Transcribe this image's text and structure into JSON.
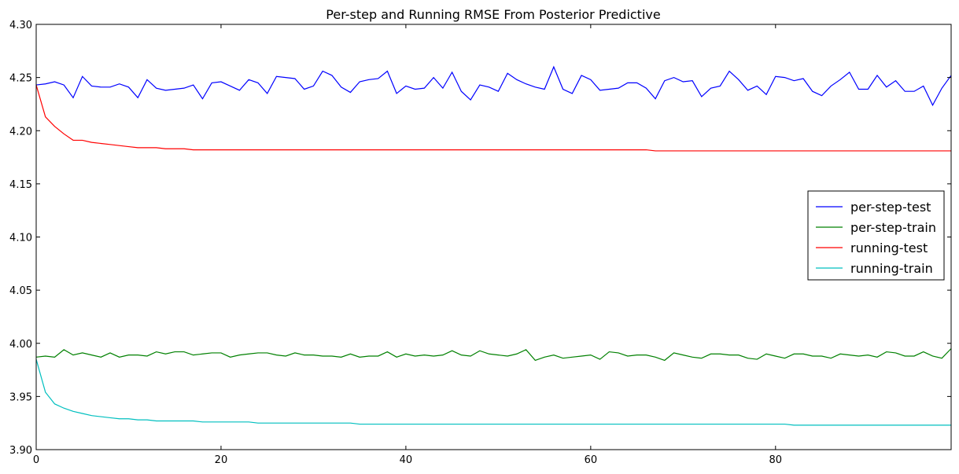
{
  "chart_data": {
    "type": "line",
    "title": "Per-step and Running RMSE From Posterior Predictive",
    "xlabel": "",
    "ylabel": "",
    "xlim": [
      0,
      99
    ],
    "ylim": [
      3.9,
      4.3
    ],
    "xticks": [
      0,
      20,
      40,
      60,
      80
    ],
    "yticks": [
      3.9,
      3.95,
      4.0,
      4.05,
      4.1,
      4.15,
      4.2,
      4.25,
      4.3
    ],
    "xtick_labels": [
      "0",
      "20",
      "40",
      "60",
      "80"
    ],
    "ytick_labels": [
      "3.90",
      "3.95",
      "4.00",
      "4.05",
      "4.10",
      "4.15",
      "4.20",
      "4.25",
      "4.30"
    ],
    "grid": false,
    "legend_position": "center-right",
    "series": [
      {
        "name": "per-step-test",
        "color": "#0000ff",
        "values": [
          4.243,
          4.244,
          4.246,
          4.243,
          4.231,
          4.251,
          4.242,
          4.241,
          4.241,
          4.244,
          4.241,
          4.231,
          4.248,
          4.24,
          4.238,
          4.239,
          4.24,
          4.243,
          4.23,
          4.245,
          4.246,
          4.242,
          4.238,
          4.248,
          4.245,
          4.235,
          4.251,
          4.25,
          4.249,
          4.239,
          4.242,
          4.256,
          4.252,
          4.241,
          4.236,
          4.246,
          4.248,
          4.249,
          4.256,
          4.235,
          4.242,
          4.239,
          4.24,
          4.25,
          4.24,
          4.255,
          4.237,
          4.229,
          4.243,
          4.241,
          4.237,
          4.254,
          4.248,
          4.244,
          4.241,
          4.239,
          4.26,
          4.239,
          4.235,
          4.252,
          4.248,
          4.238,
          4.239,
          4.24,
          4.245,
          4.245,
          4.24,
          4.23,
          4.247,
          4.25,
          4.246,
          4.247,
          4.232,
          4.24,
          4.242,
          4.256,
          4.248,
          4.238,
          4.242,
          4.234,
          4.251,
          4.25,
          4.247,
          4.249,
          4.237,
          4.233,
          4.242,
          4.248,
          4.255,
          4.239,
          4.239,
          4.252,
          4.241,
          4.247,
          4.237,
          4.237,
          4.242,
          4.224,
          4.24,
          4.252
        ]
      },
      {
        "name": "per-step-train",
        "color": "#008000",
        "values": [
          3.987,
          3.988,
          3.987,
          3.994,
          3.989,
          3.991,
          3.989,
          3.987,
          3.991,
          3.987,
          3.989,
          3.989,
          3.988,
          3.992,
          3.99,
          3.992,
          3.992,
          3.989,
          3.99,
          3.991,
          3.991,
          3.987,
          3.989,
          3.99,
          3.991,
          3.991,
          3.989,
          3.988,
          3.991,
          3.989,
          3.989,
          3.988,
          3.988,
          3.987,
          3.99,
          3.987,
          3.988,
          3.988,
          3.992,
          3.987,
          3.99,
          3.988,
          3.989,
          3.988,
          3.989,
          3.993,
          3.989,
          3.988,
          3.993,
          3.99,
          3.989,
          3.988,
          3.99,
          3.994,
          3.984,
          3.987,
          3.989,
          3.986,
          3.987,
          3.988,
          3.989,
          3.985,
          3.992,
          3.991,
          3.988,
          3.989,
          3.989,
          3.987,
          3.984,
          3.991,
          3.989,
          3.987,
          3.986,
          3.99,
          3.99,
          3.989,
          3.989,
          3.986,
          3.985,
          3.99,
          3.988,
          3.986,
          3.99,
          3.99,
          3.988,
          3.988,
          3.986,
          3.99,
          3.989,
          3.988,
          3.989,
          3.987,
          3.992,
          3.991,
          3.988,
          3.988,
          3.992,
          3.988,
          3.986,
          3.995
        ]
      },
      {
        "name": "running-test",
        "color": "#ff0000",
        "values": [
          4.243,
          4.213,
          4.204,
          4.197,
          4.191,
          4.191,
          4.189,
          4.188,
          4.187,
          4.186,
          4.185,
          4.184,
          4.184,
          4.184,
          4.183,
          4.183,
          4.183,
          4.182,
          4.182,
          4.182,
          4.182,
          4.182,
          4.182,
          4.182,
          4.182,
          4.182,
          4.182,
          4.182,
          4.182,
          4.182,
          4.182,
          4.182,
          4.182,
          4.182,
          4.182,
          4.182,
          4.182,
          4.182,
          4.182,
          4.182,
          4.182,
          4.182,
          4.182,
          4.182,
          4.182,
          4.182,
          4.182,
          4.182,
          4.182,
          4.182,
          4.182,
          4.182,
          4.182,
          4.182,
          4.182,
          4.182,
          4.182,
          4.182,
          4.182,
          4.182,
          4.182,
          4.182,
          4.182,
          4.182,
          4.182,
          4.182,
          4.182,
          4.181,
          4.181,
          4.181,
          4.181,
          4.181,
          4.181,
          4.181,
          4.181,
          4.181,
          4.181,
          4.181,
          4.181,
          4.181,
          4.181,
          4.181,
          4.181,
          4.181,
          4.181,
          4.181,
          4.181,
          4.181,
          4.181,
          4.181,
          4.181,
          4.181,
          4.181,
          4.181,
          4.181,
          4.181,
          4.181,
          4.181,
          4.181,
          4.181
        ]
      },
      {
        "name": "running-train",
        "color": "#00bfbf",
        "values": [
          3.985,
          3.954,
          3.943,
          3.939,
          3.936,
          3.934,
          3.932,
          3.931,
          3.93,
          3.929,
          3.929,
          3.928,
          3.928,
          3.927,
          3.927,
          3.927,
          3.927,
          3.927,
          3.926,
          3.926,
          3.926,
          3.926,
          3.926,
          3.926,
          3.925,
          3.925,
          3.925,
          3.925,
          3.925,
          3.925,
          3.925,
          3.925,
          3.925,
          3.925,
          3.925,
          3.924,
          3.924,
          3.924,
          3.924,
          3.924,
          3.924,
          3.924,
          3.924,
          3.924,
          3.924,
          3.924,
          3.924,
          3.924,
          3.924,
          3.924,
          3.924,
          3.924,
          3.924,
          3.924,
          3.924,
          3.924,
          3.924,
          3.924,
          3.924,
          3.924,
          3.924,
          3.924,
          3.924,
          3.924,
          3.924,
          3.924,
          3.924,
          3.924,
          3.924,
          3.924,
          3.924,
          3.924,
          3.924,
          3.924,
          3.924,
          3.924,
          3.924,
          3.924,
          3.924,
          3.924,
          3.924,
          3.924,
          3.923,
          3.923,
          3.923,
          3.923,
          3.923,
          3.923,
          3.923,
          3.923,
          3.923,
          3.923,
          3.923,
          3.923,
          3.923,
          3.923,
          3.923,
          3.923,
          3.923,
          3.923
        ]
      }
    ]
  }
}
